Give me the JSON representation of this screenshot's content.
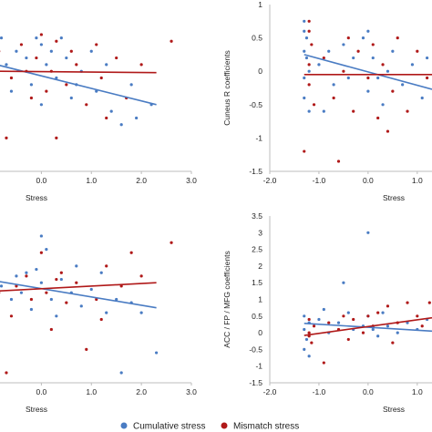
{
  "legend": {
    "items": [
      {
        "label": "Cumulative stress",
        "color": "#4a7cc3"
      },
      {
        "label": "Mismatch stress",
        "color": "#b01919"
      }
    ]
  },
  "chart_data": [
    {
      "type": "scatter",
      "title": "",
      "xlabel": "Stress",
      "ylabel": "",
      "x_ticks": [
        "0.0",
        "1.0",
        "2.0",
        "3.0"
      ],
      "y_ticks": [],
      "xlim": [
        -0.9,
        3.0
      ],
      "ylim": [
        -1.5,
        1.0
      ],
      "grid": false,
      "series": [
        {
          "name": "Cumulative stress",
          "color": "#4a7cc3",
          "points": [
            [
              -0.8,
              0.5
            ],
            [
              -0.7,
              0.1
            ],
            [
              -0.5,
              0.3
            ],
            [
              -0.3,
              0.2
            ],
            [
              -0.2,
              -0.2
            ],
            [
              -0.1,
              0.5
            ],
            [
              0.0,
              0.4
            ],
            [
              0.0,
              -0.5
            ],
            [
              0.1,
              0.1
            ],
            [
              0.2,
              0.3
            ],
            [
              0.3,
              -0.1
            ],
            [
              0.5,
              0.2
            ],
            [
              0.6,
              -0.4
            ],
            [
              0.8,
              0.0
            ],
            [
              1.0,
              0.3
            ],
            [
              1.1,
              -0.3
            ],
            [
              1.3,
              0.1
            ],
            [
              1.4,
              -0.6
            ],
            [
              1.6,
              -0.8
            ],
            [
              1.8,
              -0.2
            ],
            [
              1.9,
              -0.7
            ],
            [
              2.2,
              -0.5
            ],
            [
              -0.6,
              -0.3
            ],
            [
              0.4,
              0.5
            ],
            [
              0.7,
              -0.2
            ]
          ],
          "trend": [
            [
              -0.9,
              0.1
            ],
            [
              2.3,
              -0.5
            ]
          ]
        },
        {
          "name": "Mismatch stress",
          "color": "#b01919",
          "points": [
            [
              -0.85,
              0.3
            ],
            [
              -0.6,
              -0.1
            ],
            [
              -0.4,
              0.4
            ],
            [
              -0.2,
              -0.4
            ],
            [
              -0.1,
              0.2
            ],
            [
              0.0,
              0.55
            ],
            [
              0.1,
              -0.3
            ],
            [
              0.2,
              0.0
            ],
            [
              0.3,
              0.45
            ],
            [
              0.5,
              -0.2
            ],
            [
              0.7,
              0.1
            ],
            [
              0.9,
              -0.5
            ],
            [
              1.1,
              0.4
            ],
            [
              1.2,
              -0.1
            ],
            [
              1.5,
              0.2
            ],
            [
              1.7,
              -0.4
            ],
            [
              2.0,
              0.1
            ],
            [
              2.6,
              0.45
            ],
            [
              -0.7,
              -1.0
            ],
            [
              0.3,
              -1.0
            ],
            [
              1.3,
              -0.7
            ],
            [
              -0.3,
              0.0
            ],
            [
              0.6,
              0.3
            ]
          ],
          "trend": [
            [
              -0.9,
              0.0
            ],
            [
              2.3,
              -0.02
            ]
          ]
        }
      ]
    },
    {
      "type": "scatter",
      "title": "",
      "xlabel": "Stress",
      "ylabel": "Cuneus R coefficients",
      "x_ticks": [
        "-2.0",
        "-1.0",
        "0.0",
        "1.0"
      ],
      "y_ticks": [
        "1",
        "0.5",
        "0",
        "-0.5",
        "-1",
        "-1.5"
      ],
      "xlim": [
        -2.0,
        1.3
      ],
      "ylim": [
        -1.5,
        1.0
      ],
      "grid": false,
      "series": [
        {
          "name": "Cumulative stress",
          "color": "#4a7cc3",
          "points": [
            [
              -1.3,
              0.75
            ],
            [
              -1.3,
              0.6
            ],
            [
              -1.25,
              0.5
            ],
            [
              -1.3,
              0.3
            ],
            [
              -1.25,
              0.2
            ],
            [
              -1.3,
              -0.1
            ],
            [
              -1.2,
              0.0
            ],
            [
              -1.3,
              -0.4
            ],
            [
              -1.2,
              -0.6
            ],
            [
              -1.0,
              0.1
            ],
            [
              -0.8,
              0.3
            ],
            [
              -0.7,
              -0.2
            ],
            [
              -0.5,
              0.4
            ],
            [
              -0.4,
              -0.1
            ],
            [
              -0.3,
              0.2
            ],
            [
              -0.1,
              0.5
            ],
            [
              0.0,
              0.6
            ],
            [
              0.0,
              -0.3
            ],
            [
              0.1,
              0.2
            ],
            [
              0.2,
              -0.1
            ],
            [
              0.3,
              -0.5
            ],
            [
              0.5,
              0.3
            ],
            [
              0.7,
              -0.2
            ],
            [
              0.9,
              0.1
            ],
            [
              1.1,
              -0.4
            ],
            [
              1.2,
              0.2
            ],
            [
              -0.9,
              -0.6
            ],
            [
              0.4,
              0.0
            ]
          ],
          "trend": [
            [
              -1.3,
              0.25
            ],
            [
              1.3,
              -0.27
            ]
          ]
        },
        {
          "name": "Mismatch stress",
          "color": "#b01919",
          "points": [
            [
              -1.2,
              0.75
            ],
            [
              -1.2,
              0.6
            ],
            [
              -1.15,
              0.4
            ],
            [
              -1.2,
              0.1
            ],
            [
              -1.2,
              -0.2
            ],
            [
              -1.3,
              -1.2
            ],
            [
              -1.1,
              -0.5
            ],
            [
              -0.9,
              0.2
            ],
            [
              -0.7,
              -0.4
            ],
            [
              -0.6,
              -1.35
            ],
            [
              -0.5,
              0.0
            ],
            [
              -0.3,
              -0.6
            ],
            [
              -0.2,
              0.3
            ],
            [
              0.0,
              -0.1
            ],
            [
              0.1,
              0.4
            ],
            [
              0.2,
              -0.7
            ],
            [
              0.3,
              0.1
            ],
            [
              0.5,
              -0.3
            ],
            [
              0.6,
              0.5
            ],
            [
              0.8,
              -0.6
            ],
            [
              1.0,
              0.3
            ],
            [
              1.2,
              -0.1
            ],
            [
              -0.4,
              0.5
            ],
            [
              0.4,
              -0.9
            ]
          ],
          "trend": [
            [
              -1.3,
              -0.05
            ],
            [
              1.3,
              -0.05
            ]
          ]
        }
      ]
    },
    {
      "type": "scatter",
      "title": "",
      "xlabel": "Stress",
      "ylabel": "",
      "x_ticks": [
        "0.0",
        "1.0",
        "2.0",
        "3.0"
      ],
      "y_ticks": [],
      "xlim": [
        -0.9,
        3.0
      ],
      "ylim": [
        -1.5,
        3.5
      ],
      "grid": false,
      "series": [
        {
          "name": "Cumulative stress",
          "color": "#4a7cc3",
          "points": [
            [
              -0.8,
              1.4
            ],
            [
              -0.6,
              1.0
            ],
            [
              -0.5,
              1.7
            ],
            [
              -0.4,
              1.2
            ],
            [
              -0.2,
              0.7
            ],
            [
              -0.1,
              1.9
            ],
            [
              0.0,
              2.9
            ],
            [
              0.0,
              1.5
            ],
            [
              0.1,
              2.5
            ],
            [
              0.2,
              1.0
            ],
            [
              0.3,
              0.5
            ],
            [
              0.4,
              1.6
            ],
            [
              0.6,
              1.2
            ],
            [
              0.8,
              0.8
            ],
            [
              1.0,
              1.3
            ],
            [
              1.2,
              1.8
            ],
            [
              1.3,
              0.6
            ],
            [
              1.5,
              1.0
            ],
            [
              1.6,
              -1.2
            ],
            [
              1.8,
              0.9
            ],
            [
              2.0,
              0.6
            ],
            [
              2.3,
              -0.6
            ],
            [
              -0.3,
              1.8
            ],
            [
              0.7,
              2.0
            ]
          ],
          "trend": [
            [
              -0.9,
              1.55
            ],
            [
              2.3,
              0.75
            ]
          ]
        },
        {
          "name": "Mismatch stress",
          "color": "#b01919",
          "points": [
            [
              -0.85,
              1.2
            ],
            [
              -0.7,
              -1.2
            ],
            [
              -0.5,
              1.4
            ],
            [
              -0.3,
              1.7
            ],
            [
              -0.2,
              1.0
            ],
            [
              0.0,
              2.4
            ],
            [
              0.1,
              1.2
            ],
            [
              0.2,
              0.1
            ],
            [
              0.3,
              1.6
            ],
            [
              0.5,
              0.9
            ],
            [
              0.7,
              1.5
            ],
            [
              0.9,
              -0.5
            ],
            [
              1.1,
              1.0
            ],
            [
              1.3,
              2.0
            ],
            [
              1.6,
              1.4
            ],
            [
              1.8,
              2.4
            ],
            [
              2.0,
              1.7
            ],
            [
              2.6,
              2.7
            ],
            [
              -0.6,
              0.5
            ],
            [
              0.4,
              1.8
            ],
            [
              1.2,
              0.4
            ]
          ],
          "trend": [
            [
              -0.9,
              1.25
            ],
            [
              2.3,
              1.5
            ]
          ]
        }
      ]
    },
    {
      "type": "scatter",
      "title": "",
      "xlabel": "Stress",
      "ylabel": "ACC / FP / MFG coefficients",
      "x_ticks": [
        "-2.0",
        "-1.0",
        "0.0",
        "1.0"
      ],
      "y_ticks": [
        "3.5",
        "3",
        "2.5",
        "2",
        "1.5",
        "1",
        "0.5",
        "0",
        "-0.5",
        "-1",
        "-1.5"
      ],
      "xlim": [
        -2.0,
        1.3
      ],
      "ylim": [
        -1.5,
        3.5
      ],
      "grid": false,
      "series": [
        {
          "name": "Cumulative stress",
          "color": "#4a7cc3",
          "points": [
            [
              -1.3,
              0.5
            ],
            [
              -1.3,
              0.1
            ],
            [
              -1.25,
              -0.2
            ],
            [
              -1.2,
              0.3
            ],
            [
              -1.3,
              -0.5
            ],
            [
              -1.2,
              -0.7
            ],
            [
              -1.0,
              0.4
            ],
            [
              -0.8,
              0.0
            ],
            [
              -0.6,
              0.3
            ],
            [
              -0.4,
              0.6
            ],
            [
              -0.3,
              0.1
            ],
            [
              -0.1,
              0.2
            ],
            [
              0.0,
              3.0
            ],
            [
              0.0,
              0.5
            ],
            [
              0.1,
              0.1
            ],
            [
              0.2,
              -0.1
            ],
            [
              -0.5,
              1.5
            ],
            [
              0.4,
              0.2
            ],
            [
              0.6,
              0.0
            ],
            [
              0.8,
              0.3
            ],
            [
              1.0,
              0.1
            ],
            [
              1.2,
              0.4
            ],
            [
              -0.9,
              0.7
            ],
            [
              0.3,
              0.6
            ]
          ],
          "trend": [
            [
              -1.3,
              0.28
            ],
            [
              1.3,
              0.05
            ]
          ]
        },
        {
          "name": "Mismatch stress",
          "color": "#b01919",
          "points": [
            [
              -1.2,
              0.4
            ],
            [
              -1.2,
              0.0
            ],
            [
              -1.15,
              -0.3
            ],
            [
              -1.2,
              -0.1
            ],
            [
              -1.1,
              0.2
            ],
            [
              -0.9,
              -0.9
            ],
            [
              -0.8,
              0.3
            ],
            [
              -0.6,
              0.1
            ],
            [
              -0.4,
              -0.2
            ],
            [
              -0.3,
              0.4
            ],
            [
              -0.1,
              0.0
            ],
            [
              0.0,
              0.5
            ],
            [
              0.1,
              0.2
            ],
            [
              0.2,
              0.6
            ],
            [
              0.4,
              0.8
            ],
            [
              0.5,
              -0.3
            ],
            [
              0.6,
              0.3
            ],
            [
              0.8,
              0.9
            ],
            [
              1.0,
              0.5
            ],
            [
              1.1,
              0.2
            ],
            [
              1.25,
              0.9
            ],
            [
              -0.5,
              0.5
            ]
          ],
          "trend": [
            [
              -1.3,
              -0.08
            ],
            [
              1.3,
              0.45
            ]
          ]
        }
      ]
    }
  ]
}
